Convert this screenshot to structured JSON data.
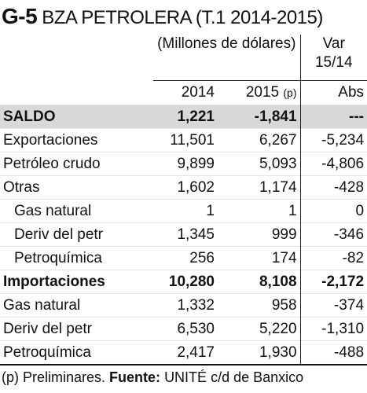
{
  "title": {
    "code": "G-5",
    "text": "BZA PETROLERA (T.1 2014-2015)"
  },
  "table": {
    "header": {
      "group": "(Millones de dólares)",
      "var": "Var 15/14",
      "years": [
        "2014",
        "2015"
      ],
      "prelim": "(p)",
      "abs": "Abs"
    },
    "rows": [
      [
        "SALDO",
        "1,221",
        "-1,841",
        "---"
      ],
      [
        "Exportaciones",
        "11,501",
        "6,267",
        "-5,234"
      ],
      [
        "Petróleo crudo",
        "9,899",
        "5,093",
        "-4,806"
      ],
      [
        "Otras",
        "1,602",
        "1,174",
        "-428"
      ],
      [
        "Gas natural",
        "1",
        "1",
        "0"
      ],
      [
        "Deriv del petr",
        "1,345",
        "999",
        "-346"
      ],
      [
        "Petroquímica",
        "256",
        "174",
        "-82"
      ],
      [
        "Importaciones",
        "10,280",
        "8,108",
        "-2,172"
      ],
      [
        "Gas natural",
        "1,332",
        "958",
        "-374"
      ],
      [
        "Deriv del petr",
        "6,530",
        "5,220",
        "-1,310"
      ],
      [
        "Petroquímica",
        "2,417",
        "1,930",
        "-488"
      ]
    ]
  },
  "footer": {
    "note": "(p) Preliminares.",
    "source_label": "Fuente:",
    "source": "UNITÉ c/d de Banxico"
  }
}
